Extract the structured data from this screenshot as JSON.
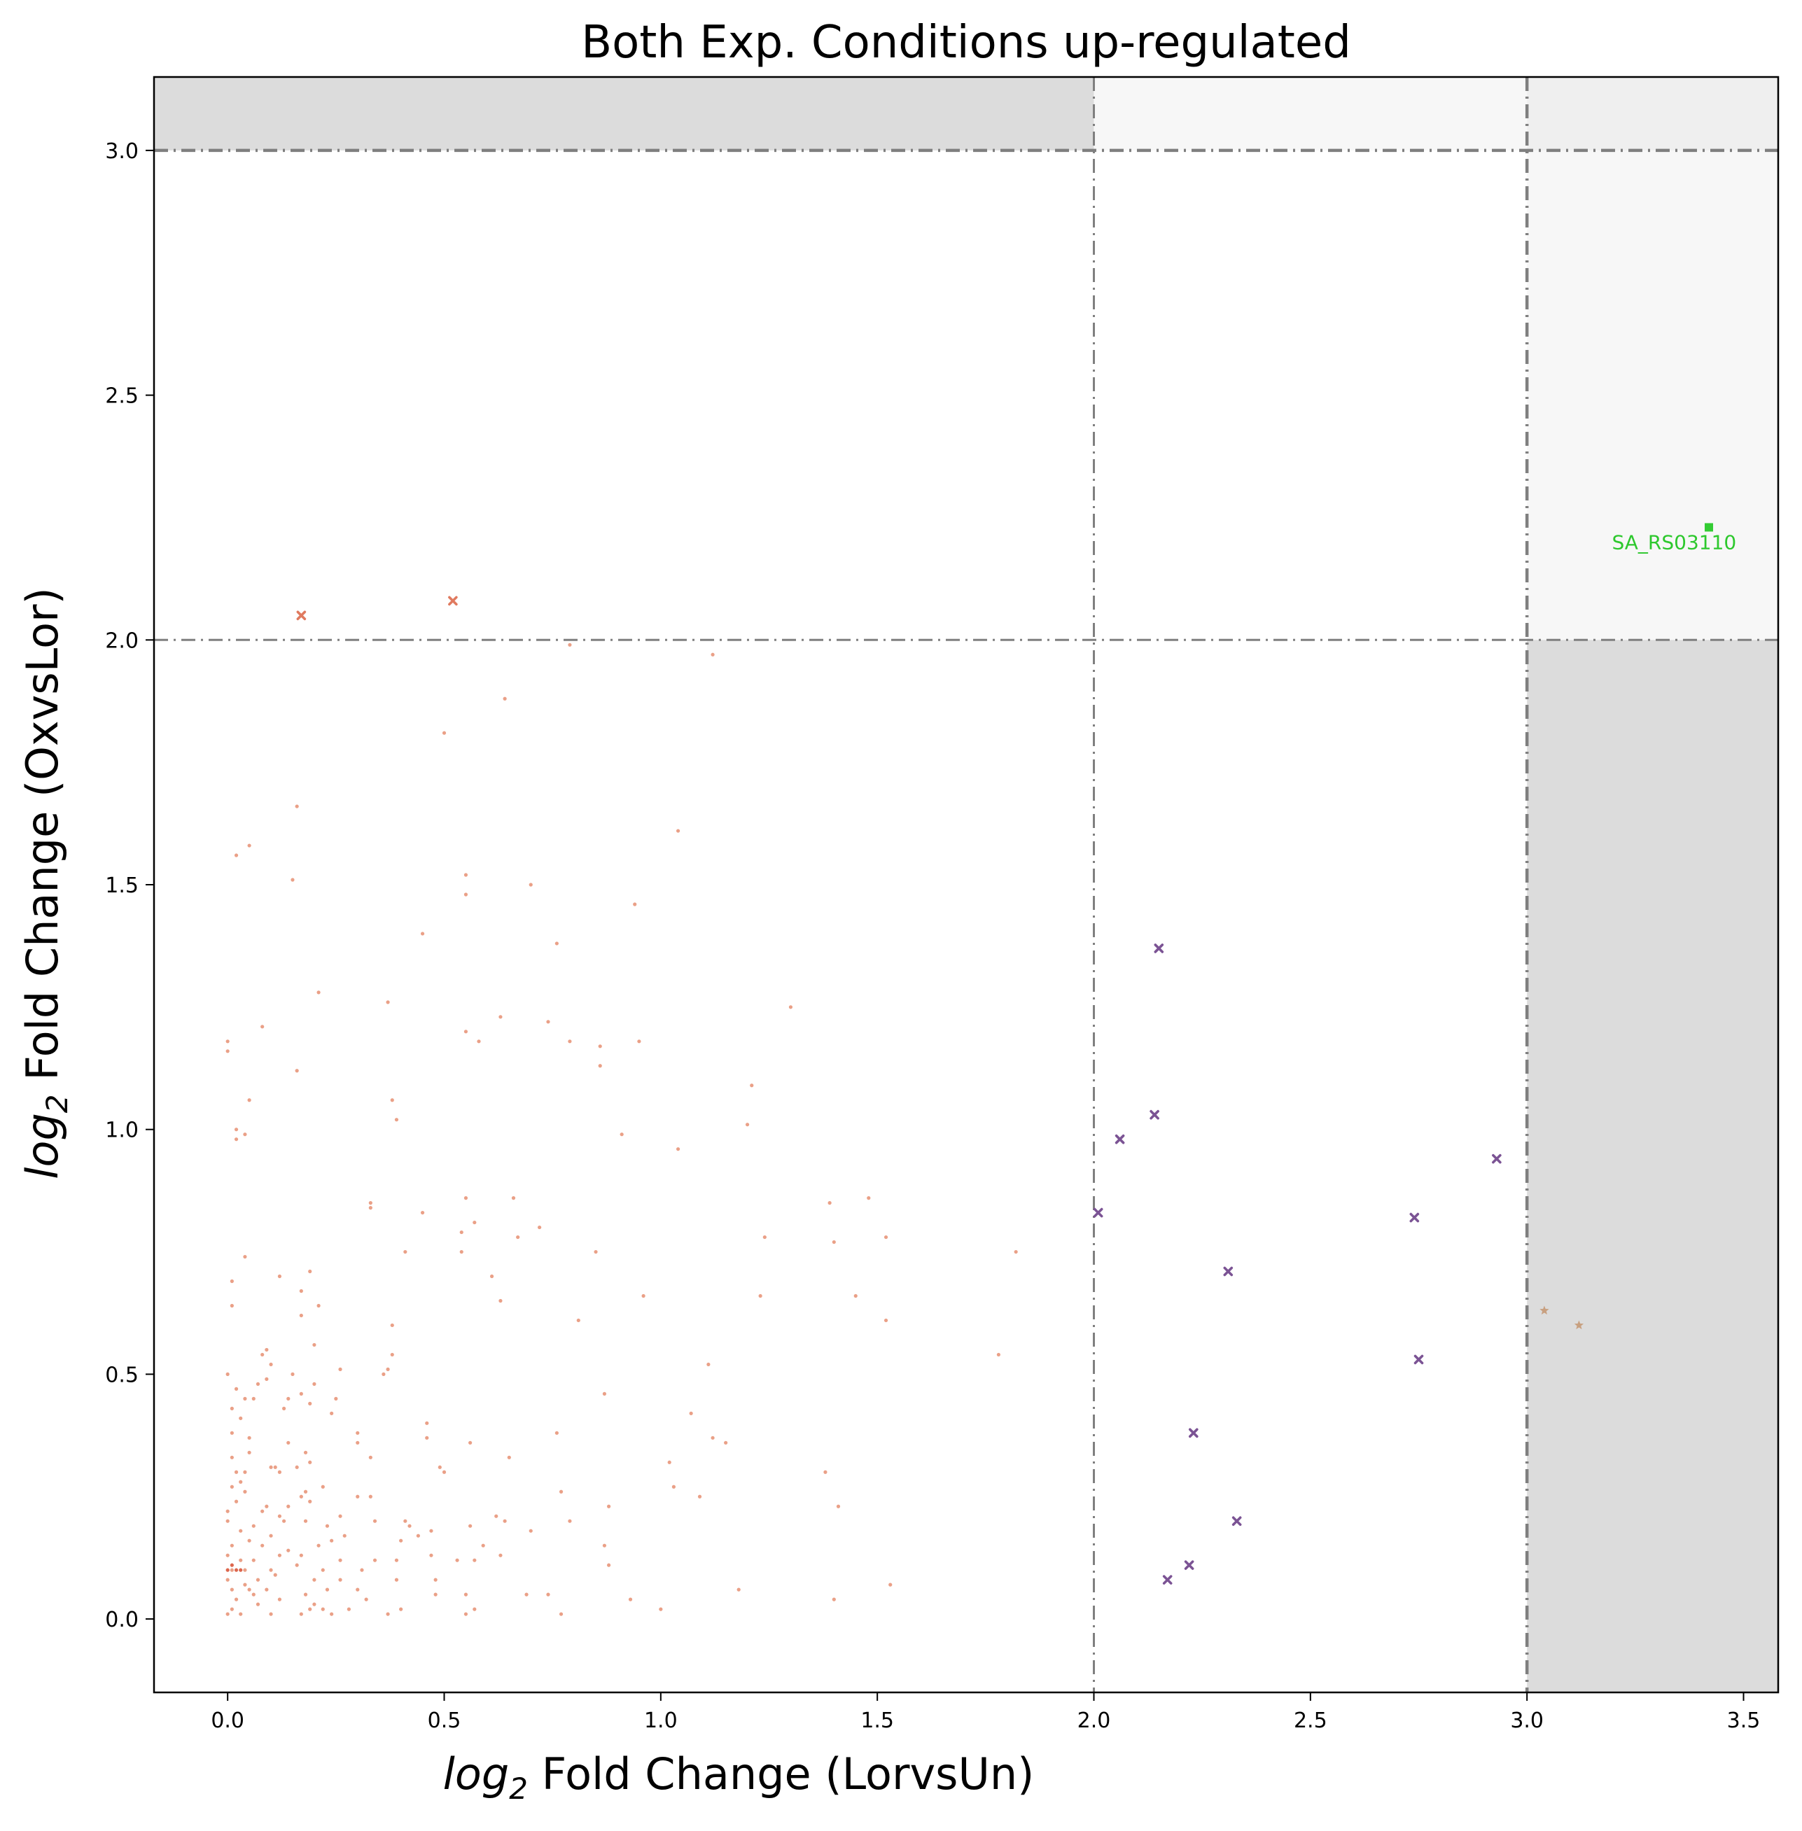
{
  "chart_data": {
    "type": "scatter",
    "title": "Both Exp. Conditions up-regulated",
    "xlabel_math": "log",
    "xlabel_sub": "2",
    "xlabel_rest": " Fold Change (LorvsUn)",
    "ylabel_math": "log",
    "ylabel_sub": "2",
    "ylabel_rest": " Fold Change (OxvsLor)",
    "xlim": [
      -0.17,
      3.58
    ],
    "ylim": [
      -0.15,
      3.15
    ],
    "xticks": [
      "0.0",
      "0.5",
      "1.0",
      "1.5",
      "2.0",
      "2.5",
      "3.0",
      "3.5"
    ],
    "yticks": [
      "0.0",
      "0.5",
      "1.0",
      "1.5",
      "2.0",
      "2.5",
      "3.0"
    ],
    "grid": false,
    "thresholds": {
      "x_lines": [
        2.0,
        3.0
      ],
      "y_lines": [
        2.0,
        3.0
      ]
    },
    "shaded_regions": [
      {
        "x": [
          -0.17,
          2.0
        ],
        "y": [
          3.0,
          3.15
        ],
        "color": "#dcdcdc"
      },
      {
        "x": [
          2.0,
          3.0
        ],
        "y": [
          3.0,
          3.15
        ],
        "color": "#f7f7f7"
      },
      {
        "x": [
          3.0,
          3.58
        ],
        "y": [
          3.0,
          3.15
        ],
        "color": "#efefef"
      },
      {
        "x": [
          3.0,
          3.58
        ],
        "y": [
          2.0,
          3.0
        ],
        "color": "#f7f7f7"
      },
      {
        "x": [
          3.0,
          3.58
        ],
        "y": [
          -0.15,
          2.0
        ],
        "color": "#dcdcdc"
      }
    ],
    "series": [
      {
        "marker": "dot",
        "color": "#e8967a",
        "points": [
          [
            0.79,
            1.99
          ],
          [
            1.12,
            1.97
          ],
          [
            0.64,
            1.88
          ],
          [
            0.5,
            1.81
          ],
          [
            0.16,
            1.66
          ],
          [
            1.04,
            1.61
          ],
          [
            0.05,
            1.58
          ],
          [
            0.02,
            1.56
          ],
          [
            0.15,
            1.51
          ],
          [
            0.55,
            1.52
          ],
          [
            0.55,
            1.48
          ],
          [
            0.7,
            1.5
          ],
          [
            0.94,
            1.46
          ],
          [
            0.45,
            1.4
          ],
          [
            0.76,
            1.38
          ],
          [
            1.3,
            1.25
          ],
          [
            0.21,
            1.28
          ],
          [
            0.37,
            1.26
          ],
          [
            0.63,
            1.23
          ],
          [
            0.74,
            1.22
          ],
          [
            0.08,
            1.21
          ],
          [
            0.55,
            1.2
          ],
          [
            0.58,
            1.18
          ],
          [
            0.79,
            1.18
          ],
          [
            0.86,
            1.17
          ],
          [
            0.95,
            1.18
          ],
          [
            0.0,
            1.18
          ],
          [
            0.0,
            1.16
          ],
          [
            0.86,
            1.13
          ],
          [
            0.16,
            1.12
          ],
          [
            1.21,
            1.09
          ],
          [
            0.05,
            1.06
          ],
          [
            0.38,
            1.06
          ],
          [
            0.39,
            1.02
          ],
          [
            1.2,
            1.01
          ],
          [
            0.02,
            1.0
          ],
          [
            0.04,
            0.99
          ],
          [
            0.02,
            0.98
          ],
          [
            0.91,
            0.99
          ],
          [
            1.04,
            0.96
          ],
          [
            0.33,
            0.85
          ],
          [
            0.33,
            0.84
          ],
          [
            0.55,
            0.86
          ],
          [
            0.66,
            0.86
          ],
          [
            1.39,
            0.85
          ],
          [
            1.48,
            0.86
          ],
          [
            0.45,
            0.83
          ],
          [
            0.72,
            0.8
          ],
          [
            0.54,
            0.79
          ],
          [
            0.57,
            0.81
          ],
          [
            0.67,
            0.78
          ],
          [
            1.24,
            0.78
          ],
          [
            1.4,
            0.77
          ],
          [
            1.52,
            0.78
          ],
          [
            0.41,
            0.75
          ],
          [
            0.54,
            0.75
          ],
          [
            0.85,
            0.75
          ],
          [
            1.82,
            0.75
          ],
          [
            0.04,
            0.74
          ],
          [
            0.12,
            0.7
          ],
          [
            0.19,
            0.71
          ],
          [
            0.61,
            0.7
          ],
          [
            0.01,
            0.69
          ],
          [
            0.17,
            0.67
          ],
          [
            0.21,
            0.64
          ],
          [
            0.63,
            0.65
          ],
          [
            0.01,
            0.64
          ],
          [
            0.96,
            0.66
          ],
          [
            1.23,
            0.66
          ],
          [
            1.45,
            0.66
          ],
          [
            0.17,
            0.62
          ],
          [
            0.81,
            0.61
          ],
          [
            1.52,
            0.61
          ],
          [
            0.38,
            0.6
          ],
          [
            0.2,
            0.56
          ],
          [
            0.09,
            0.55
          ],
          [
            0.08,
            0.54
          ],
          [
            0.38,
            0.54
          ],
          [
            1.78,
            0.54
          ],
          [
            0.1,
            0.52
          ],
          [
            0.15,
            0.5
          ],
          [
            0.26,
            0.51
          ],
          [
            0.36,
            0.5
          ],
          [
            0.37,
            0.51
          ],
          [
            1.11,
            0.52
          ],
          [
            0.0,
            0.5
          ],
          [
            0.07,
            0.48
          ],
          [
            0.02,
            0.47
          ],
          [
            0.09,
            0.49
          ],
          [
            0.2,
            0.48
          ],
          [
            0.17,
            0.46
          ],
          [
            0.04,
            0.45
          ],
          [
            0.06,
            0.45
          ],
          [
            0.14,
            0.45
          ],
          [
            0.25,
            0.45
          ],
          [
            0.87,
            0.46
          ],
          [
            0.01,
            0.43
          ],
          [
            0.13,
            0.43
          ],
          [
            0.19,
            0.44
          ],
          [
            0.03,
            0.41
          ],
          [
            0.24,
            0.42
          ],
          [
            0.46,
            0.4
          ],
          [
            1.07,
            0.42
          ],
          [
            0.01,
            0.38
          ],
          [
            0.05,
            0.37
          ],
          [
            0.3,
            0.38
          ],
          [
            0.46,
            0.37
          ],
          [
            0.76,
            0.38
          ],
          [
            1.12,
            0.37
          ],
          [
            1.15,
            0.36
          ],
          [
            0.05,
            0.34
          ],
          [
            0.14,
            0.36
          ],
          [
            0.18,
            0.34
          ],
          [
            0.3,
            0.36
          ],
          [
            0.56,
            0.36
          ],
          [
            0.01,
            0.33
          ],
          [
            0.11,
            0.31
          ],
          [
            0.33,
            0.33
          ],
          [
            0.65,
            0.33
          ],
          [
            1.02,
            0.32
          ],
          [
            0.02,
            0.3
          ],
          [
            0.04,
            0.3
          ],
          [
            0.1,
            0.31
          ],
          [
            0.16,
            0.31
          ],
          [
            0.19,
            0.32
          ],
          [
            0.49,
            0.31
          ],
          [
            0.03,
            0.28
          ],
          [
            0.12,
            0.3
          ],
          [
            0.5,
            0.3
          ],
          [
            1.38,
            0.3
          ],
          [
            0.01,
            0.27
          ],
          [
            0.04,
            0.26
          ],
          [
            0.18,
            0.26
          ],
          [
            0.22,
            0.27
          ],
          [
            0.17,
            0.25
          ],
          [
            0.3,
            0.25
          ],
          [
            0.77,
            0.26
          ],
          [
            1.03,
            0.27
          ],
          [
            0.02,
            0.24
          ],
          [
            0.09,
            0.23
          ],
          [
            0.14,
            0.23
          ],
          [
            0.19,
            0.24
          ],
          [
            0.33,
            0.25
          ],
          [
            1.09,
            0.25
          ],
          [
            0.0,
            0.22
          ],
          [
            0.08,
            0.22
          ],
          [
            0.12,
            0.21
          ],
          [
            0.26,
            0.21
          ],
          [
            0.62,
            0.21
          ],
          [
            0.88,
            0.23
          ],
          [
            1.41,
            0.23
          ],
          [
            0.0,
            0.2
          ],
          [
            0.06,
            0.19
          ],
          [
            0.13,
            0.2
          ],
          [
            0.18,
            0.2
          ],
          [
            0.23,
            0.19
          ],
          [
            0.34,
            0.2
          ],
          [
            0.41,
            0.2
          ],
          [
            0.42,
            0.19
          ],
          [
            0.56,
            0.19
          ],
          [
            0.64,
            0.2
          ],
          [
            0.79,
            0.2
          ],
          [
            0.03,
            0.18
          ],
          [
            0.1,
            0.17
          ],
          [
            0.24,
            0.16
          ],
          [
            0.27,
            0.17
          ],
          [
            0.44,
            0.17
          ],
          [
            0.47,
            0.18
          ],
          [
            0.7,
            0.18
          ],
          [
            0.01,
            0.15
          ],
          [
            0.05,
            0.16
          ],
          [
            0.08,
            0.15
          ],
          [
            0.14,
            0.14
          ],
          [
            0.21,
            0.15
          ],
          [
            0.4,
            0.16
          ],
          [
            0.59,
            0.15
          ],
          [
            0.87,
            0.15
          ],
          [
            0.0,
            0.13
          ],
          [
            0.03,
            0.12
          ],
          [
            0.06,
            0.12
          ],
          [
            0.12,
            0.13
          ],
          [
            0.17,
            0.13
          ],
          [
            0.26,
            0.12
          ],
          [
            0.34,
            0.12
          ],
          [
            0.39,
            0.12
          ],
          [
            0.47,
            0.13
          ],
          [
            0.53,
            0.12
          ],
          [
            0.63,
            0.13
          ],
          [
            0.01,
            0.1
          ],
          [
            0.04,
            0.1
          ],
          [
            0.1,
            0.1
          ],
          [
            0.16,
            0.11
          ],
          [
            0.22,
            0.1
          ],
          [
            0.31,
            0.1
          ],
          [
            0.57,
            0.12
          ],
          [
            0.88,
            0.11
          ],
          [
            0.0,
            0.08
          ],
          [
            0.04,
            0.07
          ],
          [
            0.07,
            0.08
          ],
          [
            0.11,
            0.09
          ],
          [
            0.2,
            0.08
          ],
          [
            0.26,
            0.08
          ],
          [
            0.39,
            0.08
          ],
          [
            0.48,
            0.08
          ],
          [
            0.01,
            0.06
          ],
          [
            0.05,
            0.06
          ],
          [
            0.09,
            0.06
          ],
          [
            0.18,
            0.05
          ],
          [
            0.23,
            0.06
          ],
          [
            0.3,
            0.06
          ],
          [
            0.48,
            0.05
          ],
          [
            0.69,
            0.05
          ],
          [
            0.74,
            0.05
          ],
          [
            1.18,
            0.06
          ],
          [
            1.53,
            0.07
          ],
          [
            0.02,
            0.04
          ],
          [
            0.07,
            0.03
          ],
          [
            0.12,
            0.04
          ],
          [
            0.2,
            0.03
          ],
          [
            0.32,
            0.04
          ],
          [
            0.55,
            0.05
          ],
          [
            0.93,
            0.04
          ],
          [
            1.4,
            0.04
          ],
          [
            0.0,
            0.01
          ],
          [
            0.03,
            0.01
          ],
          [
            0.1,
            0.01
          ],
          [
            0.17,
            0.01
          ],
          [
            0.22,
            0.02
          ],
          [
            0.24,
            0.01
          ],
          [
            0.28,
            0.02
          ],
          [
            0.37,
            0.01
          ],
          [
            0.4,
            0.02
          ],
          [
            0.55,
            0.01
          ],
          [
            0.57,
            0.02
          ],
          [
            0.77,
            0.01
          ],
          [
            1.0,
            0.02
          ],
          [
            0.06,
            0.05
          ],
          [
            0.19,
            0.02
          ],
          [
            0.01,
            0.02
          ]
        ]
      },
      {
        "marker": "dot",
        "color": "#d9553a",
        "points": [
          [
            0.0,
            0.1
          ],
          [
            0.02,
            0.1
          ],
          [
            0.03,
            0.1
          ],
          [
            0.01,
            0.11
          ]
        ]
      },
      {
        "marker": "x",
        "color": "#e07a5f",
        "points": [
          [
            0.17,
            2.05
          ],
          [
            0.52,
            2.08
          ]
        ]
      },
      {
        "marker": "x",
        "color": "#7b5394",
        "points": [
          [
            2.15,
            1.37
          ],
          [
            2.14,
            1.03
          ],
          [
            2.06,
            0.98
          ],
          [
            2.93,
            0.94
          ],
          [
            2.01,
            0.83
          ],
          [
            2.74,
            0.82
          ],
          [
            2.31,
            0.71
          ],
          [
            2.75,
            0.53
          ],
          [
            2.23,
            0.38
          ],
          [
            2.33,
            0.2
          ],
          [
            2.22,
            0.11
          ],
          [
            2.17,
            0.08
          ]
        ]
      },
      {
        "marker": "star",
        "color": "#c8a080",
        "points": [
          [
            3.04,
            0.63
          ],
          [
            3.12,
            0.6
          ]
        ]
      },
      {
        "marker": "square",
        "color": "#33cc33",
        "points": [
          [
            3.42,
            2.23
          ]
        ]
      }
    ],
    "annotations": [
      {
        "text": "SA_RS03110",
        "x": 3.33,
        "y": 2.2,
        "color": "#2dc82d"
      }
    ]
  }
}
